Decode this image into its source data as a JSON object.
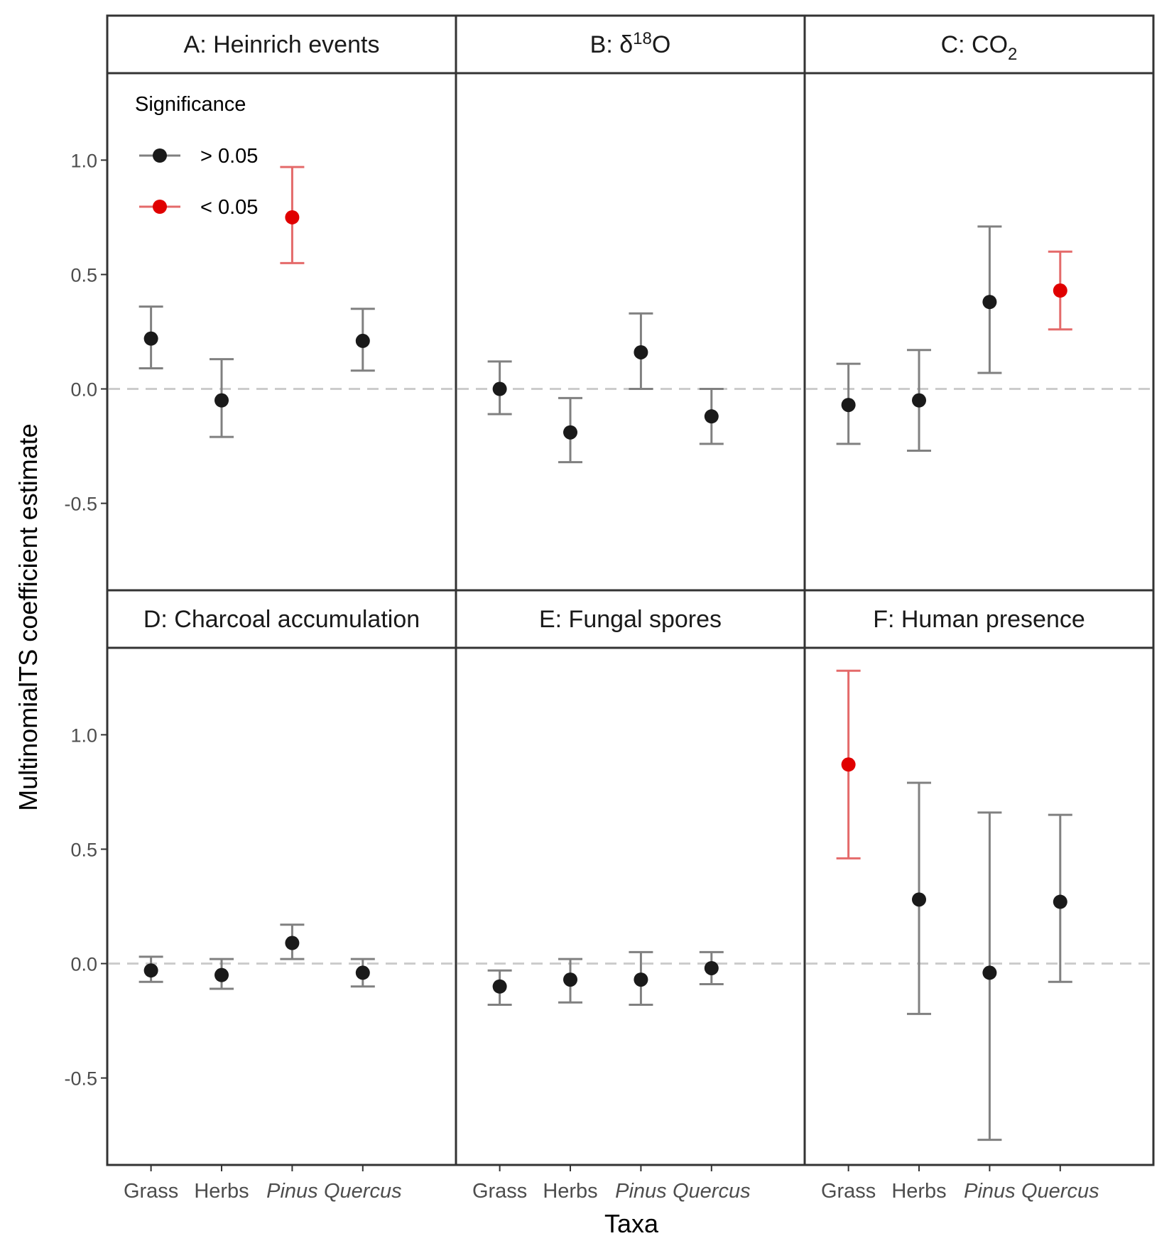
{
  "chart_data": {
    "type": "errorbar",
    "xlabel": "Taxa",
    "ylabel": "MultinomialTS coefficient estimate",
    "ylim": [
      -0.88,
      1.38
    ],
    "y_ticks": [
      -0.5,
      0.0,
      0.5,
      1.0
    ],
    "y_tick_labels": [
      "-0.5",
      "0.0",
      "0.5",
      "1.0"
    ],
    "reference_line": 0.0,
    "categories": [
      "Grass",
      "Herbs",
      "Pinus",
      "Quercus"
    ],
    "italic_categories": [
      "Pinus",
      "Quercus"
    ],
    "grid": false,
    "legend": {
      "title": "Significance",
      "placement": "top-left inside panel A",
      "entries": [
        {
          "label": "> 0.05",
          "color": "#1a1a1a",
          "line_color": "#808080"
        },
        {
          "label": "< 0.05",
          "color": "#e00000",
          "line_color": "#e46a6a"
        }
      ]
    },
    "panels": [
      {
        "title": "A: Heinrich events",
        "title_main": "A: Heinrich events",
        "title_sup": "",
        "title_sub": "",
        "title_tail": "",
        "points": [
          {
            "category": "Grass",
            "estimate": 0.22,
            "lower": 0.09,
            "upper": 0.36,
            "sig": "> 0.05"
          },
          {
            "category": "Herbs",
            "estimate": -0.05,
            "lower": -0.21,
            "upper": 0.13,
            "sig": "> 0.05"
          },
          {
            "category": "Pinus",
            "estimate": 0.75,
            "lower": 0.55,
            "upper": 0.97,
            "sig": "< 0.05"
          },
          {
            "category": "Quercus",
            "estimate": 0.21,
            "lower": 0.08,
            "upper": 0.35,
            "sig": "> 0.05"
          }
        ]
      },
      {
        "title": "B: δ18O",
        "title_main": "B: δ",
        "title_sup": "18",
        "title_sub": "",
        "title_tail": "O",
        "points": [
          {
            "category": "Grass",
            "estimate": 0.0,
            "lower": -0.11,
            "upper": 0.12,
            "sig": "> 0.05"
          },
          {
            "category": "Herbs",
            "estimate": -0.19,
            "lower": -0.32,
            "upper": -0.04,
            "sig": "> 0.05"
          },
          {
            "category": "Pinus",
            "estimate": 0.16,
            "lower": 0.0,
            "upper": 0.33,
            "sig": "> 0.05"
          },
          {
            "category": "Quercus",
            "estimate": -0.12,
            "lower": -0.24,
            "upper": 0.0,
            "sig": "> 0.05"
          }
        ]
      },
      {
        "title": "C: CO2",
        "title_main": "C: CO",
        "title_sup": "",
        "title_sub": "2",
        "title_tail": "",
        "points": [
          {
            "category": "Grass",
            "estimate": -0.07,
            "lower": -0.24,
            "upper": 0.11,
            "sig": "> 0.05"
          },
          {
            "category": "Herbs",
            "estimate": -0.05,
            "lower": -0.27,
            "upper": 0.17,
            "sig": "> 0.05"
          },
          {
            "category": "Pinus",
            "estimate": 0.38,
            "lower": 0.07,
            "upper": 0.71,
            "sig": "> 0.05"
          },
          {
            "category": "Quercus",
            "estimate": 0.43,
            "lower": 0.26,
            "upper": 0.6,
            "sig": "< 0.05"
          }
        ]
      },
      {
        "title": "D: Charcoal accumulation",
        "title_main": "D: Charcoal accumulation",
        "title_sup": "",
        "title_sub": "",
        "title_tail": "",
        "points": [
          {
            "category": "Grass",
            "estimate": -0.03,
            "lower": -0.08,
            "upper": 0.03,
            "sig": "> 0.05"
          },
          {
            "category": "Herbs",
            "estimate": -0.05,
            "lower": -0.11,
            "upper": 0.02,
            "sig": "> 0.05"
          },
          {
            "category": "Pinus",
            "estimate": 0.09,
            "lower": 0.02,
            "upper": 0.17,
            "sig": "> 0.05"
          },
          {
            "category": "Quercus",
            "estimate": -0.04,
            "lower": -0.1,
            "upper": 0.02,
            "sig": "> 0.05"
          }
        ]
      },
      {
        "title": "E: Fungal spores",
        "title_main": "E: Fungal spores",
        "title_sup": "",
        "title_sub": "",
        "title_tail": "",
        "points": [
          {
            "category": "Grass",
            "estimate": -0.1,
            "lower": -0.18,
            "upper": -0.03,
            "sig": "> 0.05"
          },
          {
            "category": "Herbs",
            "estimate": -0.07,
            "lower": -0.17,
            "upper": 0.02,
            "sig": "> 0.05"
          },
          {
            "category": "Pinus",
            "estimate": -0.07,
            "lower": -0.18,
            "upper": 0.05,
            "sig": "> 0.05"
          },
          {
            "category": "Quercus",
            "estimate": -0.02,
            "lower": -0.09,
            "upper": 0.05,
            "sig": "> 0.05"
          }
        ]
      },
      {
        "title": "F: Human presence",
        "title_main": "F: Human presence",
        "title_sup": "",
        "title_sub": "",
        "title_tail": "",
        "points": [
          {
            "category": "Grass",
            "estimate": 0.87,
            "lower": 0.46,
            "upper": 1.28,
            "sig": "< 0.05"
          },
          {
            "category": "Herbs",
            "estimate": 0.28,
            "lower": -0.22,
            "upper": 0.79,
            "sig": "> 0.05"
          },
          {
            "category": "Pinus",
            "estimate": -0.04,
            "lower": -0.77,
            "upper": 0.66,
            "sig": "> 0.05"
          },
          {
            "category": "Quercus",
            "estimate": 0.27,
            "lower": -0.08,
            "upper": 0.65,
            "sig": "> 0.05"
          }
        ]
      }
    ]
  }
}
